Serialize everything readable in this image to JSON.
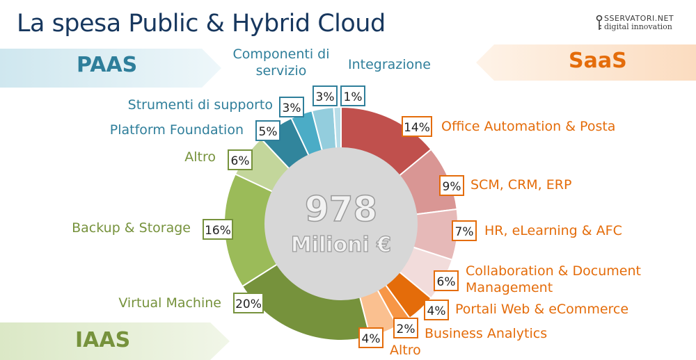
{
  "title": "La spesa Public & Hybrid Cloud",
  "logo": {
    "line1": "SSERVATORI.NET",
    "line2": "digital innovation"
  },
  "bands": {
    "paas": "PAAS",
    "saas": "SaaS",
    "iaas": "IAAS"
  },
  "colors": {
    "paas_text": "#2e7e9a",
    "saas_text": "#e46c0a",
    "iaas_text": "#76923c"
  },
  "chart_data": {
    "type": "donut",
    "center_value": "978",
    "center_unit": "Milioni €",
    "slices": [
      {
        "name": "Office Automation & Posta",
        "value": 14,
        "pct_label": "14%",
        "group": "SaaS",
        "color": "#c0504d"
      },
      {
        "name": "SCM, CRM, ERP",
        "value": 9,
        "pct_label": "9%",
        "group": "SaaS",
        "color": "#d99694"
      },
      {
        "name": "HR, eLearning & AFC",
        "value": 7,
        "pct_label": "7%",
        "group": "SaaS",
        "color": "#e6b9b8"
      },
      {
        "name": [
          "Collaboration & Document",
          "Management"
        ],
        "value": 6,
        "pct_label": "6%",
        "group": "SaaS",
        "color": "#f2dcdb"
      },
      {
        "name": "Portali Web & eCommerce",
        "value": 4,
        "pct_label": "4%",
        "group": "SaaS",
        "color": "#e46c0a"
      },
      {
        "name": "Business Analytics",
        "value": 2,
        "pct_label": "2%",
        "group": "SaaS",
        "color": "#f79646"
      },
      {
        "name": "Altro",
        "value": 4,
        "pct_label": "4%",
        "group": "SaaS",
        "color": "#fac090"
      },
      {
        "name": "Virtual Machine",
        "value": 20,
        "pct_label": "20%",
        "group": "IaaS",
        "color": "#76923c"
      },
      {
        "name": "Backup & Storage",
        "value": 16,
        "pct_label": "16%",
        "group": "IaaS",
        "color": "#9bbb59"
      },
      {
        "name": "Altro",
        "value": 6,
        "pct_label": "6%",
        "group": "IaaS",
        "color": "#c3d69b"
      },
      {
        "name": "Platform Foundation",
        "value": 5,
        "pct_label": "5%",
        "group": "PaaS",
        "color": "#31859c"
      },
      {
        "name": "Strumenti di supporto",
        "value": 3,
        "pct_label": "3%",
        "group": "PaaS",
        "color": "#4bacc6"
      },
      {
        "name": [
          "Componenti di",
          "servizio"
        ],
        "value": 3,
        "pct_label": "3%",
        "group": "PaaS",
        "color": "#93cddd"
      },
      {
        "name": "Integrazione",
        "value": 1,
        "pct_label": "1%",
        "group": "PaaS",
        "color": "#b7dde8"
      }
    ]
  }
}
